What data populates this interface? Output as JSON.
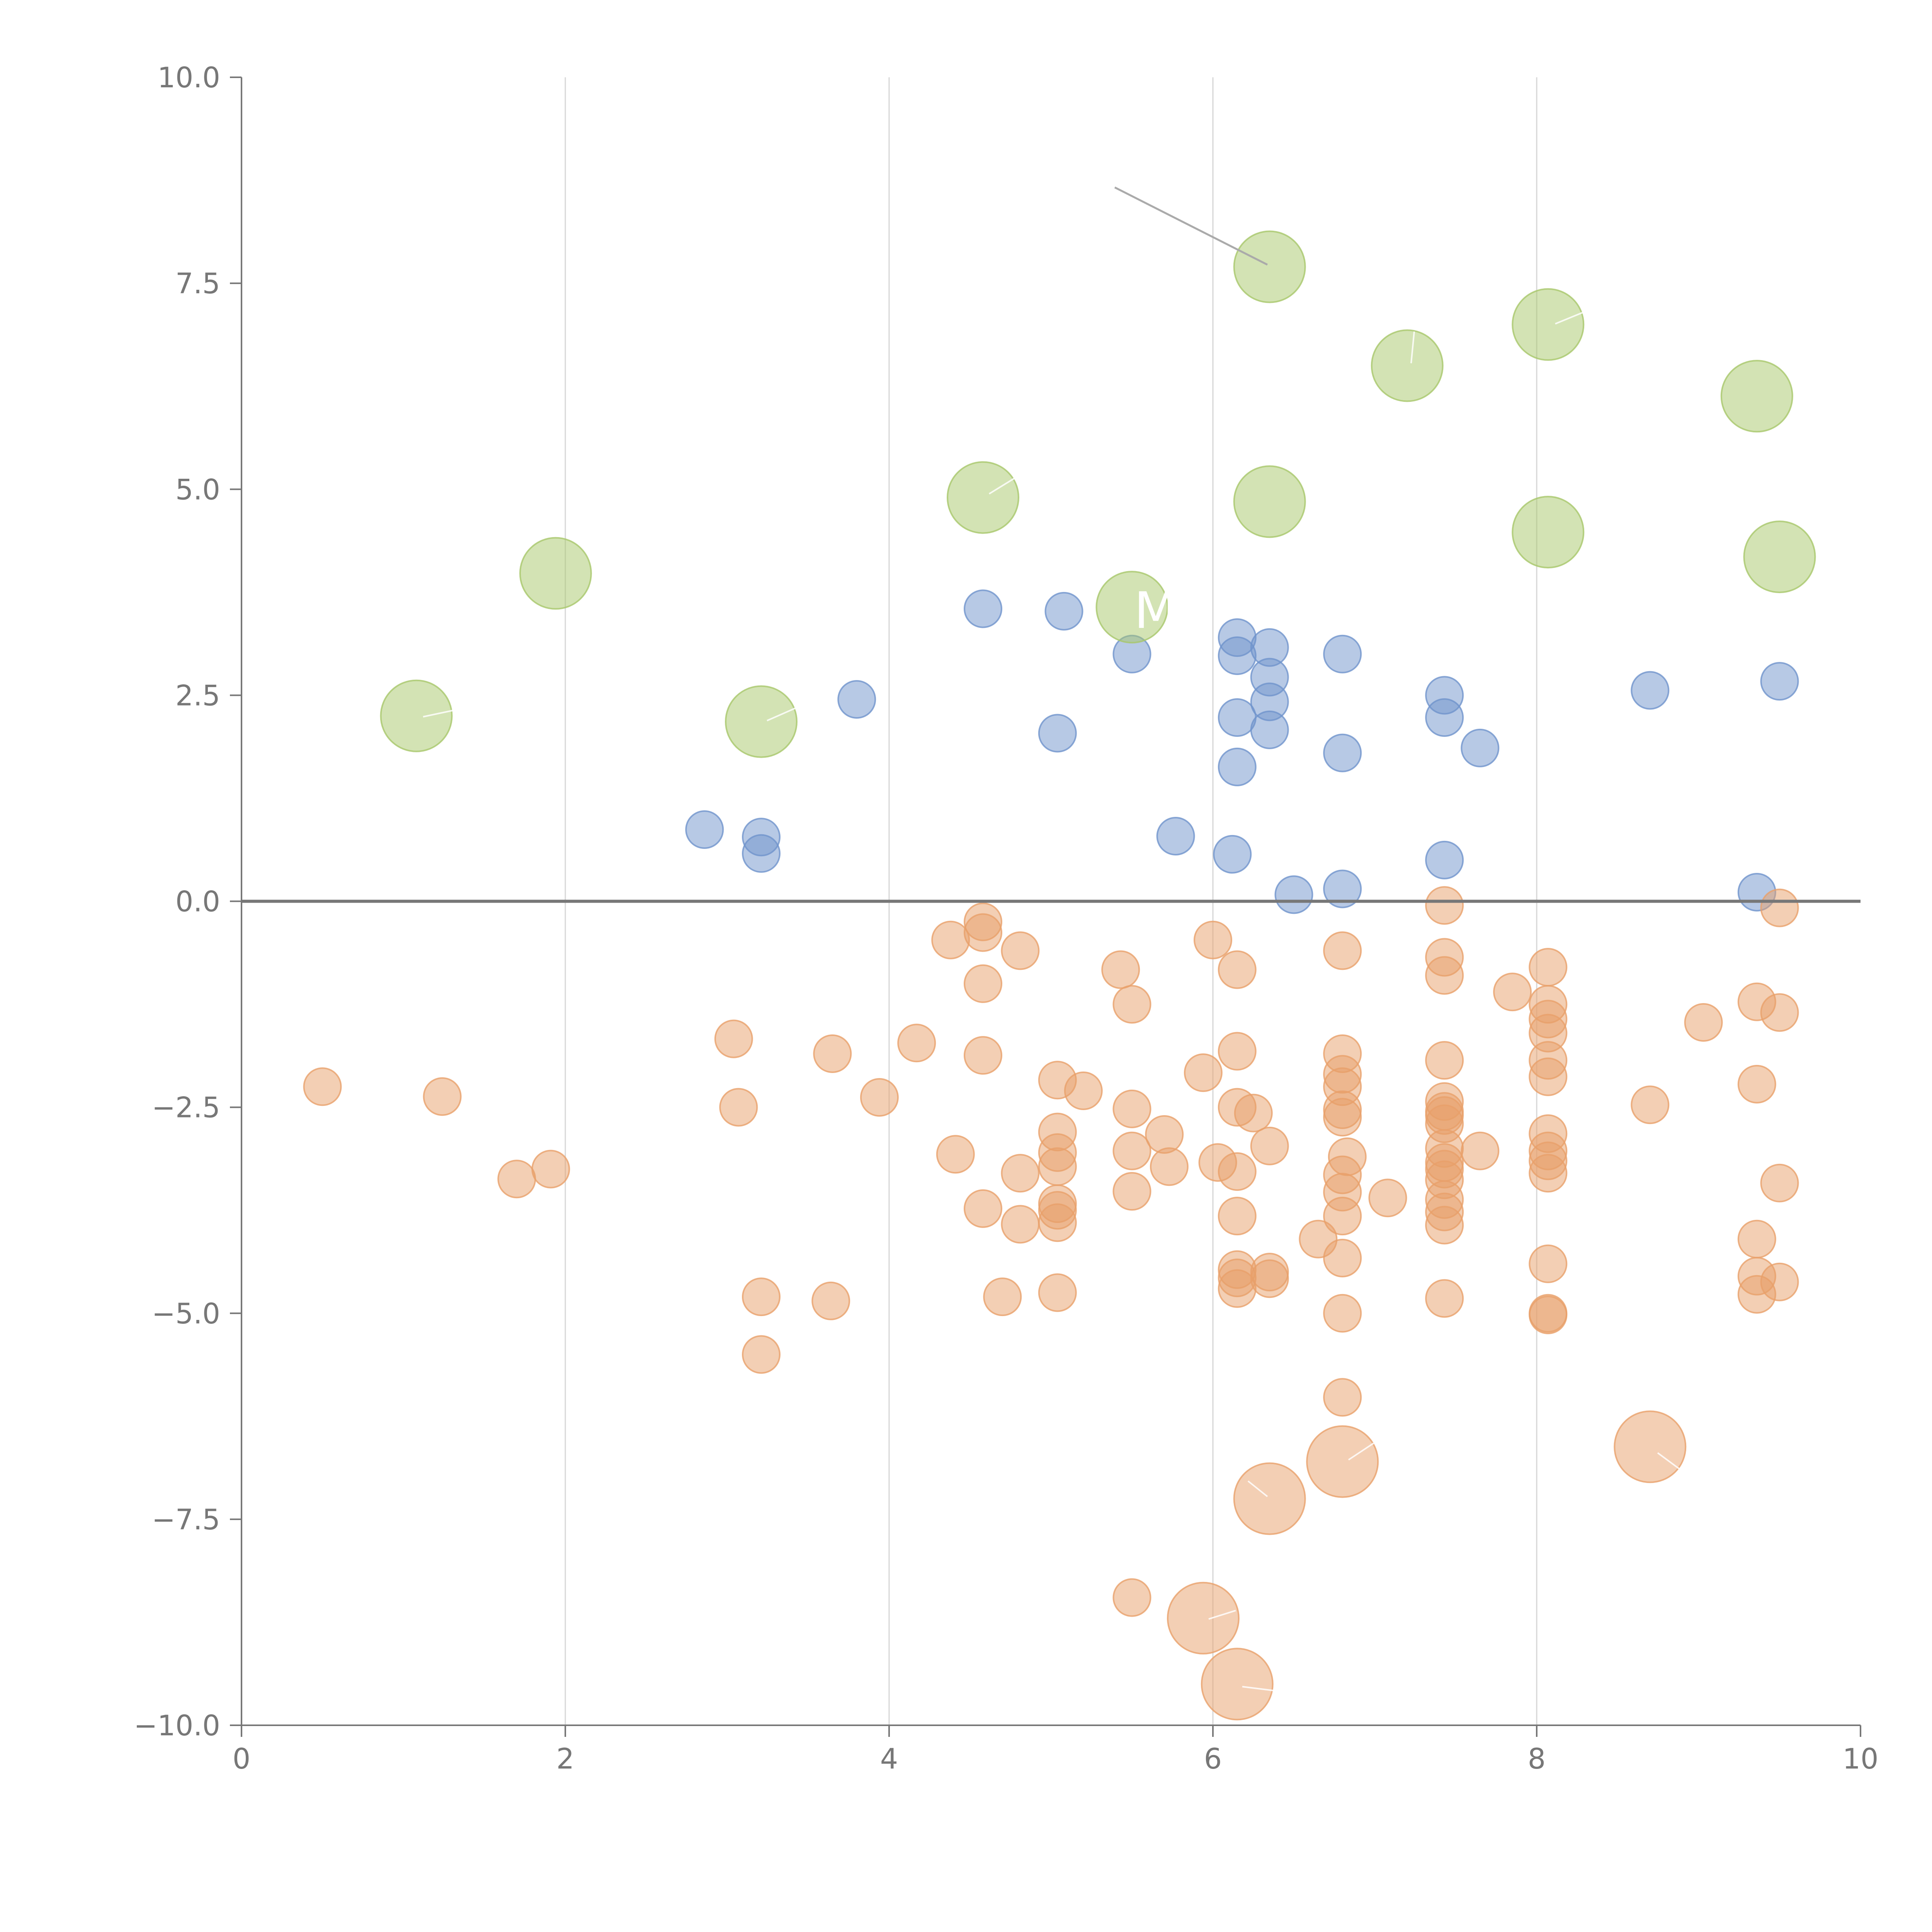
{
  "chart_data": {
    "type": "scatter",
    "title": "",
    "xlabel": "",
    "ylabel": "",
    "xlim": [
      0,
      10
    ],
    "ylim": [
      -10,
      10
    ],
    "x_ticks": [
      0,
      2,
      4,
      6,
      8,
      10
    ],
    "x_tick_labels": [
      "0",
      "2",
      "4",
      "6",
      "8",
      "10"
    ],
    "y_ticks": [
      -10,
      -7.5,
      -5,
      -2.5,
      0,
      2.5,
      5,
      7.5,
      10
    ],
    "y_tick_labels": [
      "−10.0",
      "−7.5",
      "−5.0",
      "−2.5",
      "0.0",
      "2.5",
      "5.0",
      "7.5",
      "10.0"
    ],
    "grid": "vertical",
    "reference_line_y": 0,
    "partial_label_text": "M",
    "series": [
      {
        "name": "positive",
        "color": "#6f93cc",
        "size": "small",
        "points": [
          [
            4.58,
            3.55
          ],
          [
            5.08,
            3.52
          ],
          [
            5.5,
            3.0
          ],
          [
            6.15,
            3.2
          ],
          [
            6.15,
            2.98
          ],
          [
            6.35,
            3.08
          ],
          [
            6.35,
            2.72
          ],
          [
            6.35,
            2.42
          ],
          [
            6.35,
            2.08
          ],
          [
            6.8,
            3.0
          ],
          [
            6.15,
            2.23
          ],
          [
            6.8,
            1.8
          ],
          [
            6.15,
            1.63
          ],
          [
            7.43,
            2.5
          ],
          [
            7.43,
            2.23
          ],
          [
            7.65,
            1.86
          ],
          [
            8.7,
            2.56
          ],
          [
            9.5,
            2.67
          ],
          [
            3.8,
            2.45
          ],
          [
            5.04,
            2.04
          ],
          [
            2.86,
            0.87
          ],
          [
            3.21,
            0.78
          ],
          [
            3.21,
            0.58
          ],
          [
            5.77,
            0.79
          ],
          [
            6.12,
            0.57
          ],
          [
            6.5,
            0.08
          ],
          [
            6.8,
            0.15
          ],
          [
            7.43,
            0.5
          ],
          [
            9.36,
            0.11
          ]
        ]
      },
      {
        "name": "negative",
        "color": "#e8a06a",
        "size": "small",
        "points": [
          [
            4.58,
            -0.25
          ],
          [
            4.58,
            -0.38
          ],
          [
            4.38,
            -0.47
          ],
          [
            4.81,
            -0.6
          ],
          [
            4.58,
            -1.0
          ],
          [
            5.43,
            -0.83
          ],
          [
            5.5,
            -1.25
          ],
          [
            6.0,
            -0.47
          ],
          [
            6.15,
            -0.83
          ],
          [
            6.8,
            -0.6
          ],
          [
            7.43,
            -0.05
          ],
          [
            7.43,
            -0.68
          ],
          [
            7.43,
            -0.9
          ],
          [
            7.85,
            -1.1
          ],
          [
            8.07,
            -0.8
          ],
          [
            8.07,
            -1.25
          ],
          [
            8.07,
            -1.43
          ],
          [
            8.07,
            -1.6
          ],
          [
            8.07,
            -1.93
          ],
          [
            8.07,
            -2.13
          ],
          [
            9.5,
            -0.08
          ],
          [
            9.36,
            -1.22
          ],
          [
            9.5,
            -1.35
          ],
          [
            9.03,
            -1.47
          ],
          [
            9.36,
            -2.22
          ],
          [
            8.7,
            -2.47
          ],
          [
            0.5,
            -2.25
          ],
          [
            1.24,
            -2.37
          ],
          [
            1.7,
            -3.37
          ],
          [
            1.91,
            -3.25
          ],
          [
            3.04,
            -1.67
          ],
          [
            3.07,
            -2.5
          ],
          [
            3.65,
            -1.85
          ],
          [
            3.94,
            -2.38
          ],
          [
            4.17,
            -1.72
          ],
          [
            4.58,
            -1.87
          ],
          [
            5.04,
            -2.17
          ],
          [
            5.2,
            -2.3
          ],
          [
            5.94,
            -2.08
          ],
          [
            6.15,
            -1.82
          ],
          [
            6.15,
            -2.5
          ],
          [
            6.25,
            -2.57
          ],
          [
            5.5,
            -2.52
          ],
          [
            5.04,
            -2.8
          ],
          [
            5.04,
            -3.05
          ],
          [
            5.04,
            -3.22
          ],
          [
            5.7,
            -2.83
          ],
          [
            5.5,
            -3.03
          ],
          [
            5.73,
            -3.22
          ],
          [
            6.03,
            -3.17
          ],
          [
            6.15,
            -3.28
          ],
          [
            6.35,
            -2.97
          ],
          [
            4.41,
            -3.07
          ],
          [
            4.81,
            -3.3
          ],
          [
            4.58,
            -3.73
          ],
          [
            4.81,
            -3.92
          ],
          [
            5.04,
            -3.67
          ],
          [
            5.04,
            -3.75
          ],
          [
            5.04,
            -3.9
          ],
          [
            5.5,
            -3.52
          ],
          [
            6.15,
            -3.82
          ],
          [
            6.8,
            -1.85
          ],
          [
            6.8,
            -2.1
          ],
          [
            6.8,
            -2.25
          ],
          [
            6.8,
            -2.53
          ],
          [
            6.8,
            -2.62
          ],
          [
            6.8,
            -3.32
          ],
          [
            6.83,
            -3.1
          ],
          [
            6.8,
            -3.53
          ],
          [
            6.8,
            -3.82
          ],
          [
            7.08,
            -3.6
          ],
          [
            6.65,
            -4.1
          ],
          [
            6.8,
            -4.33
          ],
          [
            7.43,
            -1.93
          ],
          [
            7.43,
            -2.43
          ],
          [
            7.43,
            -2.55
          ],
          [
            7.43,
            -2.6
          ],
          [
            7.43,
            -2.7
          ],
          [
            7.43,
            -3.0
          ],
          [
            7.43,
            -3.17
          ],
          [
            7.43,
            -3.25
          ],
          [
            7.43,
            -3.38
          ],
          [
            7.43,
            -3.62
          ],
          [
            7.43,
            -3.77
          ],
          [
            7.43,
            -3.93
          ],
          [
            7.65,
            -3.03
          ],
          [
            8.07,
            -2.82
          ],
          [
            8.07,
            -3.03
          ],
          [
            8.07,
            -3.15
          ],
          [
            8.07,
            -3.3
          ],
          [
            8.07,
            -4.4
          ],
          [
            8.07,
            -5.0
          ],
          [
            8.07,
            -5.02
          ],
          [
            9.36,
            -4.1
          ],
          [
            9.5,
            -3.42
          ],
          [
            9.36,
            -4.55
          ],
          [
            9.36,
            -4.77
          ],
          [
            9.5,
            -4.62
          ],
          [
            6.15,
            -4.47
          ],
          [
            6.15,
            -4.57
          ],
          [
            6.15,
            -4.7
          ],
          [
            6.35,
            -4.5
          ],
          [
            6.35,
            -4.58
          ],
          [
            4.7,
            -4.8
          ],
          [
            5.04,
            -4.75
          ],
          [
            6.8,
            -5.0
          ],
          [
            7.43,
            -4.82
          ],
          [
            3.21,
            -4.8
          ],
          [
            3.64,
            -4.85
          ],
          [
            3.21,
            -5.5
          ],
          [
            6.8,
            -6.02
          ],
          [
            5.5,
            -8.45
          ]
        ]
      },
      {
        "name": "highlight-positive",
        "color": "#a8c76a",
        "size": "large",
        "points": [
          [
            6.35,
            7.7
          ],
          [
            7.2,
            6.5
          ],
          [
            8.07,
            7.0
          ],
          [
            9.36,
            6.13
          ],
          [
            4.58,
            4.9
          ],
          [
            6.35,
            4.85
          ],
          [
            8.07,
            4.48
          ],
          [
            9.5,
            4.18
          ],
          [
            1.94,
            3.98
          ],
          [
            5.5,
            3.57
          ],
          [
            1.08,
            2.25
          ],
          [
            3.21,
            2.18
          ]
        ]
      },
      {
        "name": "highlight-negative",
        "color": "#e8a06a",
        "size": "large",
        "points": [
          [
            6.35,
            -7.25
          ],
          [
            6.8,
            -6.8
          ],
          [
            8.7,
            -6.62
          ],
          [
            5.94,
            -8.7
          ],
          [
            6.15,
            -9.5
          ]
        ]
      }
    ]
  }
}
